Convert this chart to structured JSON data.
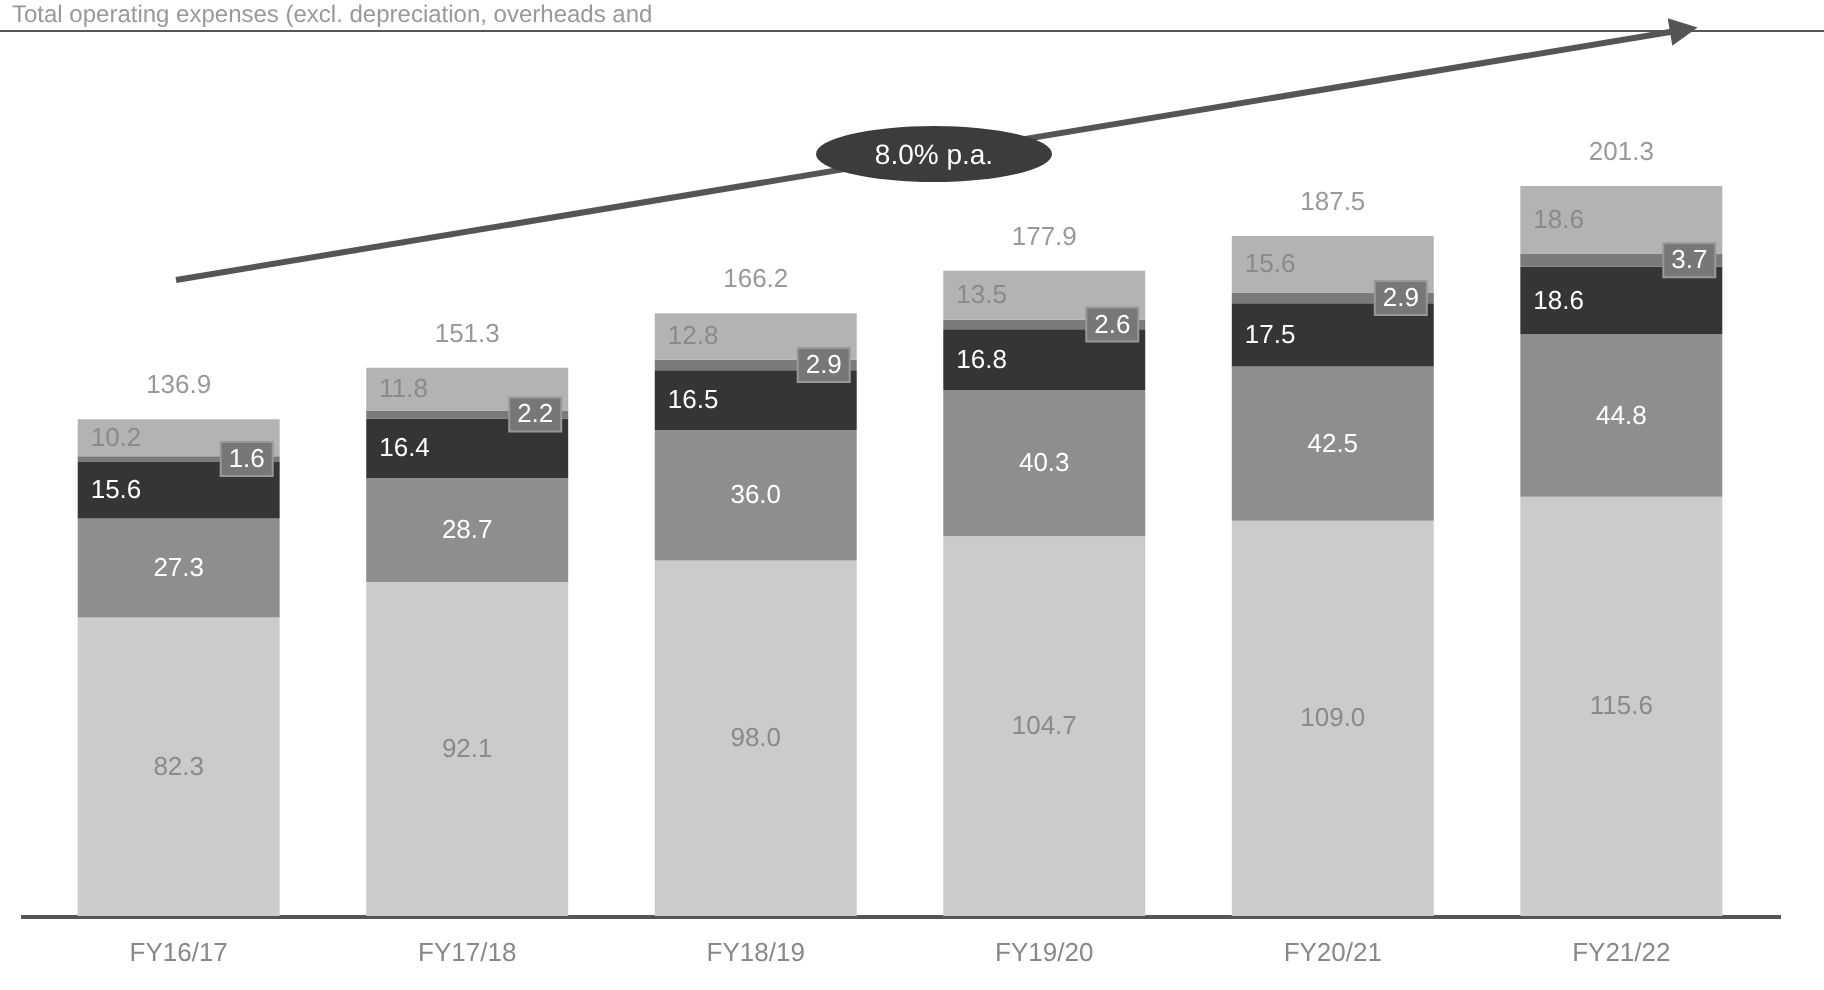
{
  "chart_data": {
    "type": "bar",
    "stacked": true,
    "title": "Total operating expenses (excl. depreciation, overheads and",
    "categories": [
      "FY16/17",
      "FY17/18",
      "FY18/19",
      "FY19/20",
      "FY20/21",
      "FY21/22"
    ],
    "series": [
      {
        "color": "#cbcbcb",
        "values": [
          82.3,
          92.1,
          98.0,
          104.7,
          109.0,
          115.6
        ],
        "value_labels": [
          "82.3",
          "92.1",
          "98.0",
          "104.7",
          "109.0",
          "115.6"
        ]
      },
      {
        "color": "#8e8e8e",
        "values": [
          27.3,
          28.7,
          36.0,
          40.3,
          42.5,
          44.8
        ],
        "value_labels": [
          "27.3",
          "28.7",
          "36.0",
          "40.3",
          "42.5",
          "44.8"
        ]
      },
      {
        "color": "#353535",
        "values": [
          15.6,
          16.4,
          16.5,
          16.8,
          17.5,
          18.6
        ],
        "value_labels": [
          "15.6",
          "16.4",
          "16.5",
          "16.8",
          "17.5",
          "18.6"
        ]
      },
      {
        "color": "#7a7a7a",
        "values": [
          1.6,
          2.2,
          2.9,
          2.6,
          2.9,
          3.7
        ],
        "value_labels": [
          "1.6",
          "2.2",
          "2.9",
          "2.6",
          "2.9",
          "3.7"
        ]
      },
      {
        "color": "#b3b3b3",
        "values": [
          10.2,
          11.8,
          12.8,
          13.5,
          15.6,
          18.6
        ],
        "value_labels": [
          "10.2",
          "11.8",
          "12.8",
          "13.5",
          "15.6",
          "18.6"
        ]
      }
    ],
    "totals": [
      "136.9",
      "151.3",
      "166.2",
      "177.9",
      "187.5",
      "201.3"
    ],
    "annotations": [
      "8.0% p.a."
    ]
  }
}
